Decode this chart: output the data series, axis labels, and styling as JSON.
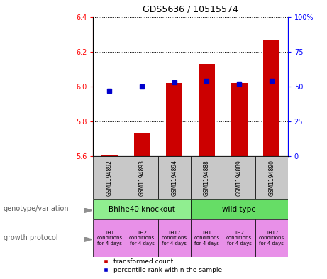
{
  "title": "GDS5636 / 10515574",
  "samples": [
    "GSM1194892",
    "GSM1194893",
    "GSM1194894",
    "GSM1194888",
    "GSM1194889",
    "GSM1194890"
  ],
  "red_values": [
    5.605,
    5.735,
    6.02,
    6.13,
    6.02,
    6.27
  ],
  "blue_values_pct": [
    47,
    50,
    53,
    54,
    52,
    54
  ],
  "ylim_left": [
    5.6,
    6.4
  ],
  "ylim_right": [
    0,
    100
  ],
  "yticks_left": [
    5.6,
    5.8,
    6.0,
    6.2,
    6.4
  ],
  "yticks_right": [
    0,
    25,
    50,
    75,
    100
  ],
  "ytick_right_labels": [
    "0",
    "25",
    "50",
    "75",
    "100%"
  ],
  "bar_bottom": 5.6,
  "bar_color": "#cc0000",
  "dot_color": "#0000cc",
  "genotype_group1_label": "Bhlhe40 knockout",
  "genotype_group2_label": "wild type",
  "genotype_color1": "#90ee90",
  "genotype_color2": "#66dd66",
  "growth_protocol_labels": [
    "TH1\nconditions\nfor 4 days",
    "TH2\nconditions\nfor 4 days",
    "TH17\nconditions\nfor 4 days",
    "TH1\nconditions\nfor 4 days",
    "TH2\nconditions\nfor 4 days",
    "TH17\nconditions\nfor 4 days"
  ],
  "growth_protocol_color": "#e890e8",
  "sample_box_color": "#c8c8c8",
  "legend_red": "transformed count",
  "legend_blue": "percentile rank within the sample",
  "left_label1": "genotype/variation",
  "left_label2": "growth protocol",
  "arrow_color": "#909090"
}
